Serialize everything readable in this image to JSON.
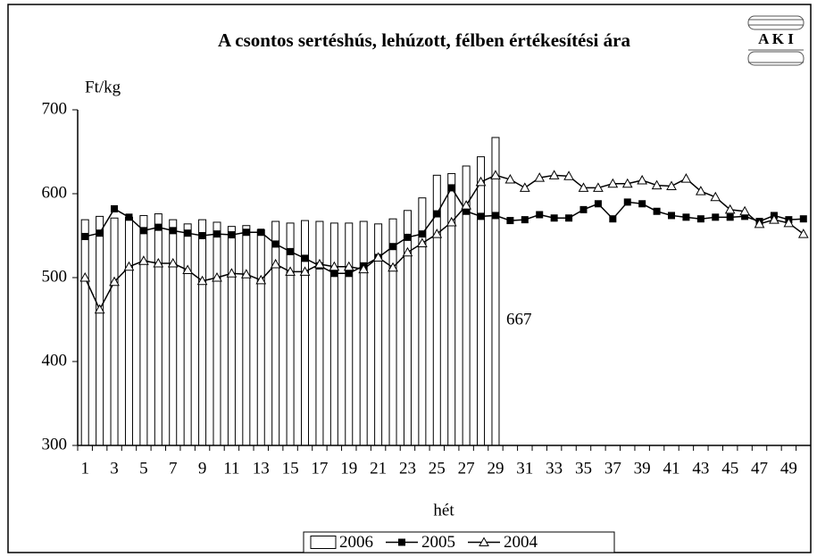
{
  "logo": "A K I",
  "chart_data": {
    "type": "bar_line",
    "title": "A csontos sertéshús, lehúzott, félben értékesítési ára",
    "y_label": "Ft/kg",
    "x_label": "hét",
    "categories": [
      1,
      null,
      3,
      null,
      5,
      null,
      7,
      null,
      9,
      null,
      11,
      null,
      13,
      null,
      15,
      null,
      17,
      null,
      19,
      null,
      21,
      null,
      23,
      null,
      25,
      null,
      27,
      null,
      29,
      null,
      31,
      null,
      33,
      null,
      35,
      null,
      37,
      null,
      39,
      null,
      41,
      null,
      43,
      null,
      45,
      null,
      47,
      null,
      49,
      null
    ],
    "ylim": [
      300,
      700
    ],
    "yticks": [
      300,
      400,
      500,
      600,
      700
    ],
    "grid": false,
    "legend": "bottom",
    "annotations": [
      {
        "text": "667",
        "series": 0,
        "index": 28
      }
    ],
    "series": [
      {
        "name": "2006",
        "kind": "bar",
        "color": "#ffffff",
        "values": [
          569,
          573,
          571,
          572,
          574,
          576,
          569,
          564,
          569,
          566,
          561,
          562,
          557,
          567,
          565,
          568,
          567,
          565,
          565,
          567,
          564,
          570,
          580,
          595,
          622,
          624,
          633,
          644,
          667,
          null,
          null,
          null,
          null,
          null,
          null,
          null,
          null,
          null,
          null,
          null,
          null,
          null,
          null,
          null,
          null,
          null,
          null,
          null,
          null,
          null
        ]
      },
      {
        "name": "2005",
        "kind": "line",
        "marker": "square",
        "color": "#000000",
        "values": [
          549,
          553,
          582,
          572,
          556,
          560,
          556,
          553,
          550,
          552,
          551,
          554,
          554,
          540,
          531,
          523,
          514,
          505,
          505,
          514,
          524,
          537,
          548,
          552,
          576,
          607,
          579,
          573,
          574,
          568,
          569,
          575,
          571,
          571,
          581,
          588,
          570,
          590,
          588,
          579,
          574,
          572,
          570,
          572,
          572,
          573,
          567,
          574,
          569,
          570
        ]
      },
      {
        "name": "2004",
        "kind": "line",
        "marker": "triangle",
        "color": "#000000",
        "values": [
          500,
          462,
          495,
          513,
          520,
          517,
          517,
          509,
          496,
          500,
          505,
          504,
          497,
          516,
          507,
          507,
          516,
          513,
          513,
          510,
          524,
          512,
          530,
          541,
          552,
          566,
          586,
          614,
          622,
          617,
          607,
          619,
          622,
          621,
          607,
          607,
          612,
          612,
          616,
          610,
          609,
          618,
          603,
          596,
          581,
          579,
          564,
          569,
          565,
          552
        ]
      }
    ]
  }
}
